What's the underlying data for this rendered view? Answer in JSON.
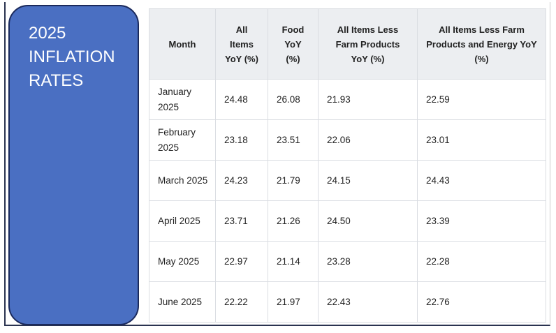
{
  "title": "2025 INFLATION RATES",
  "table": {
    "header": [
      "Month",
      "All Items YoY (%)",
      "Food YoY (%)",
      "All Items Less Farm Products YoY (%)",
      "All Items Less Farm Products and Energy YoY (%)"
    ],
    "rows": [
      [
        "January 2025",
        "24.48",
        "26.08",
        "21.93",
        "22.59"
      ],
      [
        "February 2025",
        "23.18",
        "23.51",
        "22.06",
        "23.01"
      ],
      [
        "March 2025",
        "24.23",
        "21.79",
        "24.15",
        "24.43"
      ],
      [
        "April 2025",
        "23.71",
        "21.26",
        "24.50",
        "23.39"
      ],
      [
        "May 2025",
        "22.97",
        "21.14",
        "23.28",
        "22.28"
      ],
      [
        "June 2025",
        "22.22",
        "21.97",
        "22.43",
        "22.76"
      ]
    ]
  }
}
